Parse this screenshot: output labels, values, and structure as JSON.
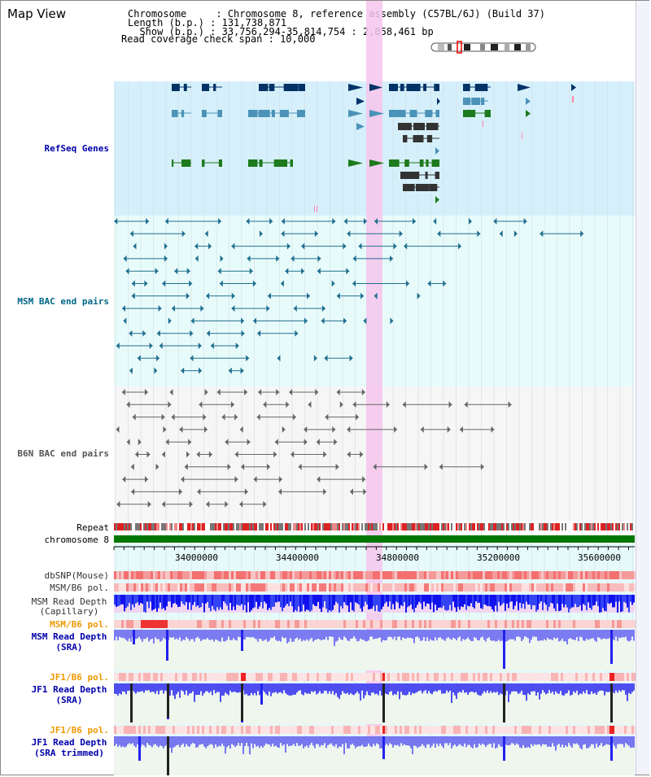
{
  "view": {
    "title": "Map View",
    "header_lines": [
      "Chromosome     : Chromosome 8, reference assembly (C57BL/6J) (Build 37)",
      "Length (b.p.) : 131,738,871",
      "  Show (b.p.) : 33,756,294-35,814,754 : 2,058,461 bp",
      "Read coverage check span : 10,000"
    ]
  },
  "tracks": {
    "refseq": "RefSeq Genes",
    "msm_bac": "MSM BAC end pairs",
    "b6n_bac": "B6N BAC end pairs",
    "repeat": "Repeat",
    "chromosome": "chromosome 8",
    "dbsnp": "dbSNP(Mouse)",
    "msm_b6_pol": "MSM/B6 pol.",
    "msm_depth_cap_1": "MSM Read Depth",
    "msm_depth_cap_2": "(Capillary)",
    "msm_b6_pol_sra": "MSM/B6 pol.",
    "msm_depth_sra_1": "MSM Read Depth",
    "msm_depth_sra_2": "(SRA)",
    "jf1_b6_pol_1": "JF1/B6 pol.",
    "jf1_depth_sra_1": "JF1 Read Depth",
    "jf1_depth_sra_2": "(SRA)",
    "jf1_b6_pol_2": "JF1/B6 pol.",
    "jf1_depth_trim_1": "JF1 Read Depth",
    "jf1_depth_trim_2": "(SRA trimmed)"
  },
  "axis": {
    "ticks": [
      "34000000",
      "34400000",
      "34800000",
      "35200000",
      "35600000"
    ],
    "range_bp": [
      33756294,
      35814754
    ]
  },
  "colors": {
    "refseq_bg": "#d6f0fb",
    "msm_bg": "#e8fbfb",
    "b6n_bg": "#f6f6f6",
    "highlight": "#f6c6ec",
    "chromosome": "#007700",
    "gene_dark": "#003366",
    "gene_mid": "#4b93b8",
    "gene_green": "#1d7a1d",
    "msm_line": "#1f6f8f",
    "b6n_line": "#666666",
    "depth_blue": "#2222ee",
    "depth_light": "#8888f0",
    "label_blue": "#0000aa",
    "label_orange": "#ee9900",
    "label_teal": "#006688"
  }
}
